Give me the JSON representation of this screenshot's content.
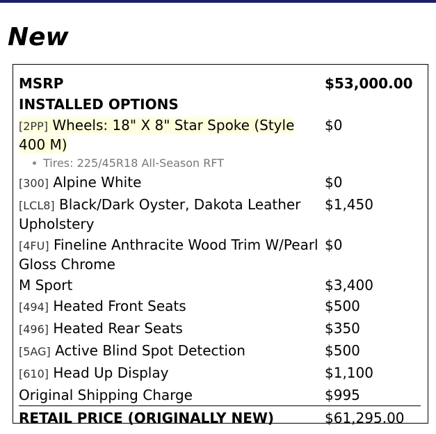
{
  "heading": "New",
  "msrp": {
    "label": "MSRP",
    "price": "$53,000.00"
  },
  "installed_options_label": "INSTALLED OPTIONS",
  "options": [
    {
      "code": "[2PP]",
      "name": "Wheels: 18\" X 8\" Star Spoke (Style 400 M)",
      "price": "$0",
      "highlighted": true,
      "details": [
        "Tires: 225/45R18 All-Season RFT"
      ]
    },
    {
      "code": "[300]",
      "name": "Alpine White",
      "price": "$0"
    },
    {
      "code": "[LCL8]",
      "name": "Black/Dark Oyster, Dakota Leather Upholstery",
      "price": "$1,450"
    },
    {
      "code": "[4FU]",
      "name": "Fineline Anthracite Wood Trim W/Pearl Gloss Chrome",
      "price": "$0"
    },
    {
      "code": "",
      "name": "M Sport",
      "price": "$3,400"
    },
    {
      "code": "[494]",
      "name": "Heated Front Seats",
      "price": "$500"
    },
    {
      "code": "[496]",
      "name": "Heated Rear Seats",
      "price": "$350"
    },
    {
      "code": "[5AG]",
      "name": "Active Blind Spot Detection",
      "price": "$500"
    },
    {
      "code": "[610]",
      "name": "Head Up Display",
      "price": "$1,100"
    },
    {
      "code": "",
      "name": "Original Shipping Charge",
      "price": "$995"
    }
  ],
  "total": {
    "label": "RETAIL PRICE (ORIGINALLY NEW)",
    "price": "$61,295.00"
  },
  "colors": {
    "top_bar": "#1b1f6b",
    "highlight": "#ffffdd"
  }
}
